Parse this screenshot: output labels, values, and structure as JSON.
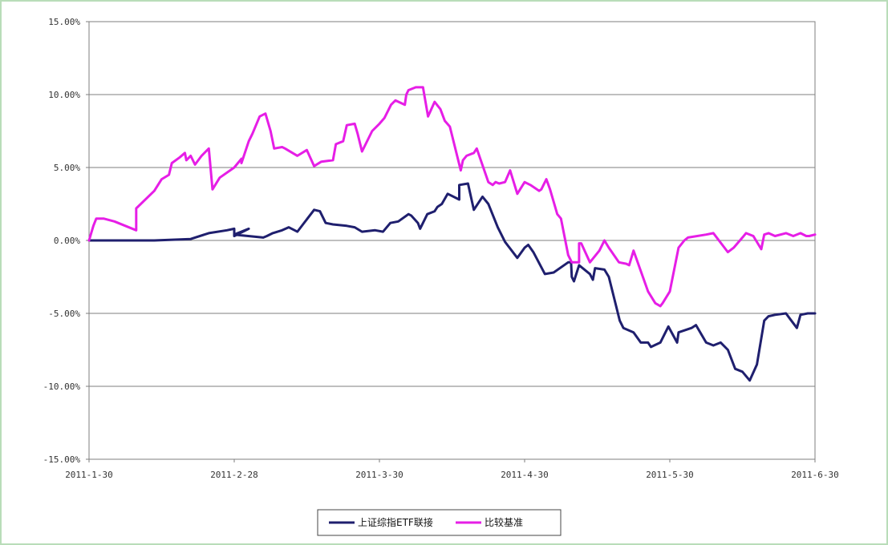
{
  "chart_data": {
    "type": "line",
    "title": "",
    "xlabel": "",
    "ylabel": "",
    "ylim": [
      -15,
      15
    ],
    "x_ticks": [
      "2011-1-30",
      "2011-2-28",
      "2011-3-30",
      "2011-4-30",
      "2011-5-30",
      "2011-6-30"
    ],
    "y_ticks": [
      "15.00%",
      "10.00%",
      "5.00%",
      "0.00%",
      "-5.00%",
      "-10.00%",
      "-15.00%"
    ],
    "grid": true,
    "legend_position": "bottom",
    "series": [
      {
        "name": "上证综指ETF联接",
        "color": "#1f1f6e",
        "x": [
          0,
          0.035,
          0.065,
          0.09,
          0.14,
          0.165,
          0.19,
          0.2,
          0.2,
          0.22,
          0.2,
          0.24,
          0.245,
          0.253,
          0.266,
          0.275,
          0.287,
          0.31,
          0.318,
          0.326,
          0.336,
          0.355,
          0.366,
          0.376,
          0.394,
          0.405,
          0.415,
          0.426,
          0.44,
          0.444,
          0.453,
          0.456,
          0.466,
          0.476,
          0.48,
          0.486,
          0.494,
          0.51,
          0.51,
          0.522,
          0.53,
          0.542,
          0.55,
          0.563,
          0.573,
          0.59,
          0.6,
          0.605,
          0.612,
          0.628,
          0.64,
          0.66,
          0.664,
          0.665,
          0.668,
          0.675,
          0.69,
          0.694,
          0.697,
          0.71,
          0.716,
          0.731,
          0.736,
          0.75,
          0.76,
          0.77,
          0.774,
          0.787,
          0.798,
          0.81,
          0.812,
          0.83,
          0.836,
          0.85,
          0.86,
          0.87,
          0.88,
          0.89,
          0.9,
          0.91,
          0.92,
          0.93,
          0.936,
          0.945,
          0.96,
          0.966,
          0.975,
          0.98,
          0.99,
          1
        ],
        "y": [
          0,
          0,
          0,
          0,
          0.1,
          0.5,
          0.7,
          0.8,
          0.3,
          0.8,
          0.4,
          0.2,
          0.3,
          0.5,
          0.7,
          0.9,
          0.6,
          2.1,
          2.0,
          1.2,
          1.1,
          1.0,
          0.9,
          0.6,
          0.7,
          0.6,
          1.2,
          1.3,
          1.8,
          1.7,
          1.2,
          0.8,
          1.8,
          2.0,
          2.3,
          2.5,
          3.2,
          2.8,
          3.8,
          3.9,
          2.1,
          3.0,
          2.5,
          0.9,
          -0.1,
          -1.2,
          -0.5,
          -0.3,
          -0.8,
          -2.3,
          -2.2,
          -1.5,
          -1.5,
          -2.5,
          -2.8,
          -1.7,
          -2.3,
          -2.7,
          -1.9,
          -2.0,
          -2.5,
          -5.5,
          -6.0,
          -6.3,
          -7.0,
          -7.0,
          -7.3,
          -7.0,
          -5.9,
          -7.0,
          -6.3,
          -6.0,
          -5.8,
          -7.0,
          -7.2,
          -7.0,
          -7.5,
          -8.8,
          -9.0,
          -9.6,
          -8.5,
          -5.5,
          -5.2,
          -5.1,
          -5.0,
          -5.4,
          -6.0,
          -5.1,
          -5.0,
          -5.0
        ]
      },
      {
        "name": "比较基准",
        "color": "#e61ee6",
        "x": [
          0,
          0.006,
          0.01,
          0.02,
          0.035,
          0.065,
          0.065,
          0.09,
          0.1,
          0.11,
          0.114,
          0.125,
          0.132,
          0.134,
          0.14,
          0.146,
          0.155,
          0.165,
          0.17,
          0.18,
          0.2,
          0.21,
          0.21,
          0.22,
          0.225,
          0.235,
          0.243,
          0.25,
          0.255,
          0.266,
          0.27,
          0.287,
          0.3,
          0.31,
          0.32,
          0.336,
          0.34,
          0.35,
          0.355,
          0.366,
          0.37,
          0.376,
          0.39,
          0.4,
          0.407,
          0.416,
          0.422,
          0.435,
          0.437,
          0.44,
          0.45,
          0.46,
          0.467,
          0.476,
          0.484,
          0.49,
          0.497,
          0.512,
          0.515,
          0.52,
          0.53,
          0.534,
          0.55,
          0.556,
          0.56,
          0.565,
          0.573,
          0.58,
          0.59,
          0.6,
          0.608,
          0.62,
          0.623,
          0.63,
          0.635,
          0.645,
          0.65,
          0.66,
          0.665,
          0.675,
          0.675,
          0.678,
          0.69,
          0.703,
          0.71,
          0.716,
          0.73,
          0.74,
          0.744,
          0.75,
          0.77,
          0.78,
          0.787,
          0.79,
          0.8,
          0.812,
          0.82,
          0.825,
          0.85,
          0.86,
          0.88,
          0.888,
          0.9,
          0.905,
          0.915,
          0.926,
          0.93,
          0.936,
          0.945,
          0.96,
          0.97,
          0.98,
          0.988,
          0.992,
          1
        ],
        "y": [
          0,
          1.0,
          1.5,
          1.5,
          1.3,
          0.7,
          2.2,
          3.4,
          4.2,
          4.5,
          5.3,
          5.7,
          6.0,
          5.5,
          5.8,
          5.2,
          5.8,
          6.3,
          3.5,
          4.3,
          5.0,
          5.6,
          5.3,
          6.8,
          7.3,
          8.5,
          8.7,
          7.5,
          6.3,
          6.4,
          6.3,
          5.8,
          6.2,
          5.1,
          5.4,
          5.5,
          6.6,
          6.8,
          7.9,
          8.0,
          7.3,
          6.1,
          7.5,
          8.0,
          8.4,
          9.3,
          9.6,
          9.3,
          10.0,
          10.3,
          10.5,
          10.5,
          8.5,
          9.5,
          9.0,
          8.2,
          7.8,
          4.8,
          5.5,
          5.8,
          6.0,
          6.3,
          4.0,
          3.8,
          4.0,
          3.9,
          4.0,
          4.8,
          3.2,
          4.0,
          3.8,
          3.4,
          3.5,
          4.2,
          3.5,
          1.8,
          1.5,
          -1.0,
          -1.5,
          -1.5,
          -0.2,
          -0.2,
          -1.5,
          -0.7,
          0.0,
          -0.5,
          -1.5,
          -1.6,
          -1.7,
          -0.7,
          -3.5,
          -4.3,
          -4.5,
          -4.3,
          -3.5,
          -0.5,
          0.0,
          0.2,
          0.4,
          0.5,
          -0.8,
          -0.5,
          0.2,
          0.5,
          0.3,
          -0.6,
          0.4,
          0.5,
          0.3,
          0.5,
          0.3,
          0.5,
          0.3,
          0.3,
          0.4
        ]
      }
    ]
  }
}
